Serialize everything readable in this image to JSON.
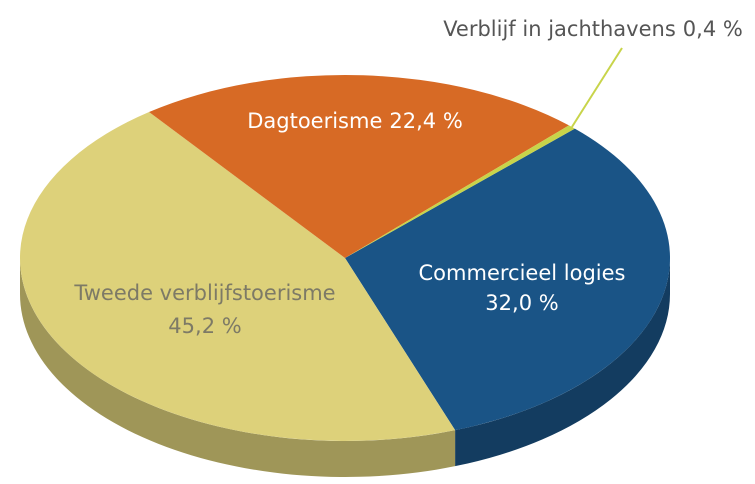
{
  "chart_data": {
    "type": "pie",
    "categories": [
      "Commercieel logies",
      "Tweede verblijfstoerisme",
      "Dagtoerisme",
      "Verblijf in jachthavens"
    ],
    "values": [
      32.0,
      45.2,
      22.4,
      0.4
    ],
    "value_labels": [
      "32,0 %",
      "45,2 %",
      "22,4 %",
      "0,4 %"
    ],
    "colors": [
      "#1a5486",
      "#ddd17a",
      "#d76a25",
      "#c8d44a"
    ]
  }
}
